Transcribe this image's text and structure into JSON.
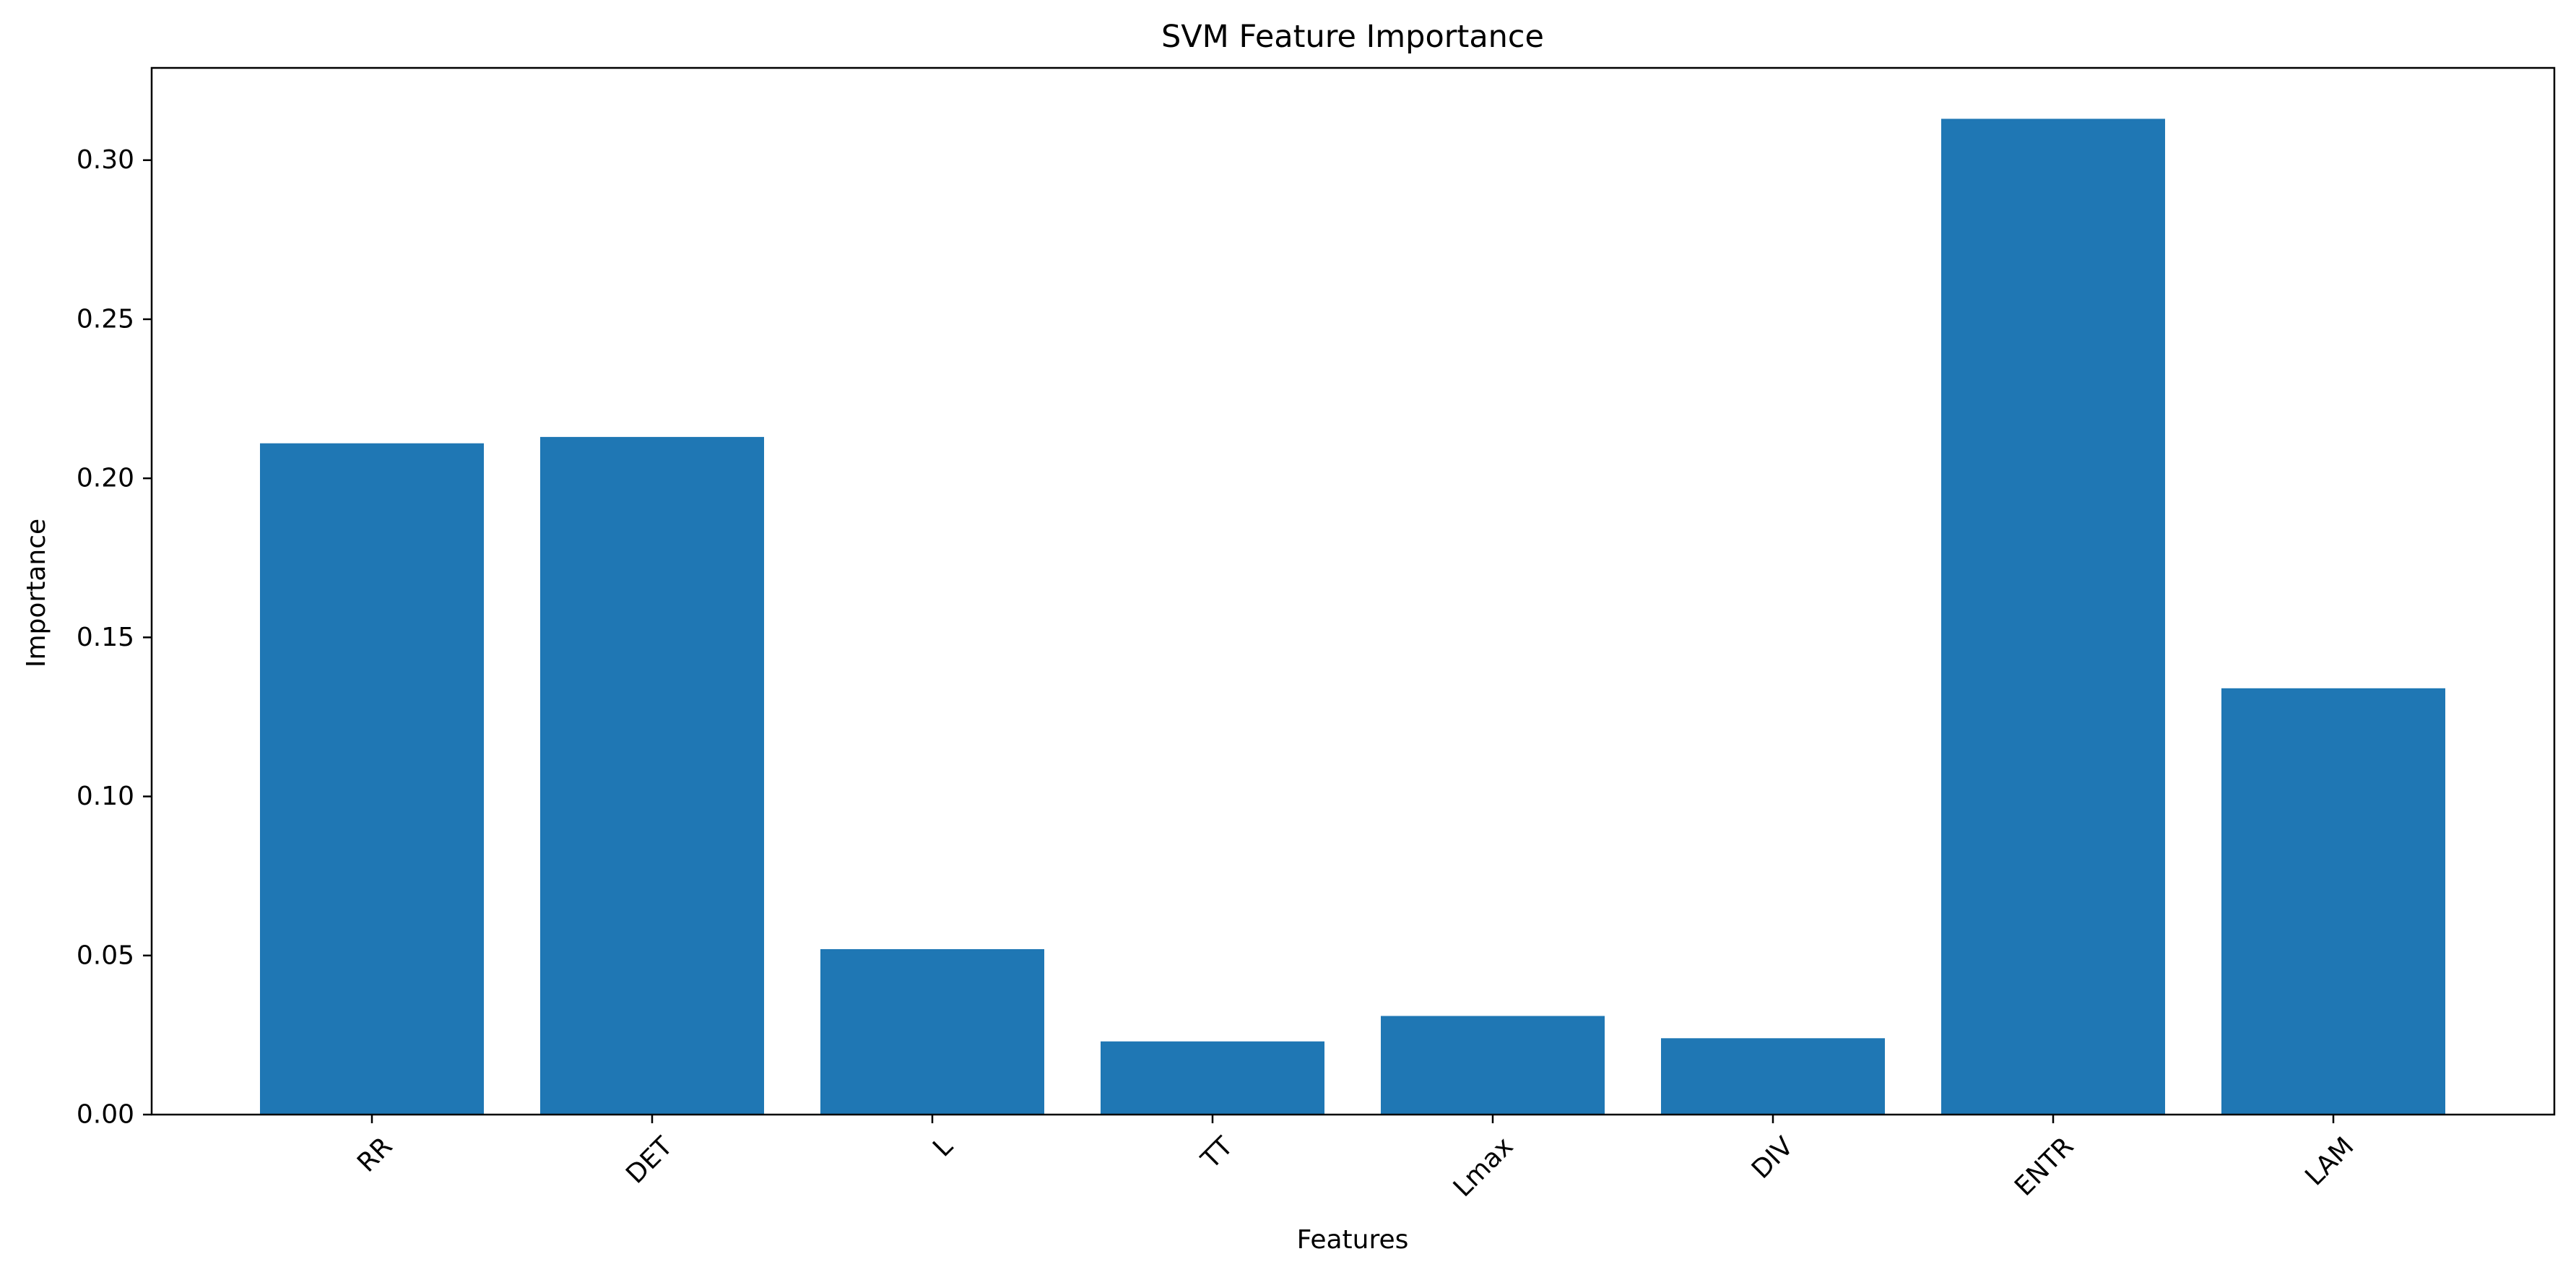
{
  "chart_data": {
    "type": "bar",
    "title": "SVM Feature Importance",
    "xlabel": "Features",
    "ylabel": "Importance",
    "categories": [
      "RR",
      "DET",
      "L",
      "TT",
      "Lmax",
      "DIV",
      "ENTR",
      "LAM"
    ],
    "values": [
      0.211,
      0.213,
      0.052,
      0.023,
      0.031,
      0.024,
      0.313,
      0.134
    ],
    "ylim": [
      0,
      0.329
    ],
    "yticks": [
      0.0,
      0.05,
      0.1,
      0.15,
      0.2,
      0.25,
      0.3
    ],
    "ytick_labels": [
      "0.00",
      "0.05",
      "0.10",
      "0.15",
      "0.20",
      "0.25",
      "0.30"
    ],
    "xtick_rotation_deg": 45,
    "bar_color": "#1f77b4",
    "grid": false,
    "legend": "none"
  }
}
